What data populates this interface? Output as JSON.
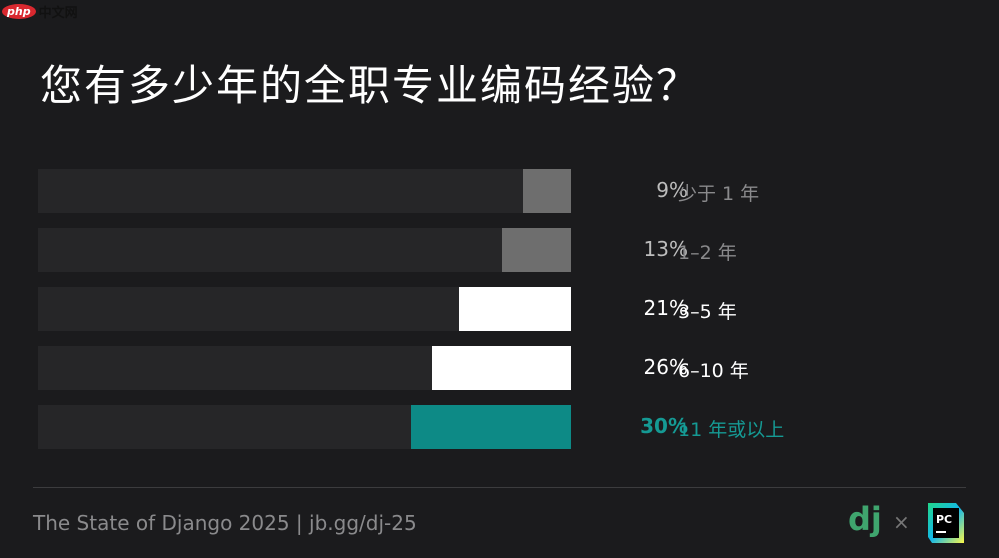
{
  "watermark": {
    "logo": "php",
    "text": "中文网"
  },
  "title": "您有多少年的全职专业编码经验？",
  "chart_data": {
    "type": "bar",
    "orientation": "horizontal",
    "categories": [
      "少于 1 年",
      "1–2 年",
      "3–5 年",
      "6–10 年",
      "11 年或以上"
    ],
    "values": [
      9,
      13,
      21,
      26,
      30
    ],
    "value_labels": [
      "9%",
      "13%",
      "21%",
      "26%",
      "30%"
    ],
    "xlim": [
      0,
      100
    ],
    "grid": false,
    "colors": [
      "#6e6e6e",
      "#6e6e6e",
      "#ffffff",
      "#ffffff",
      "#0d8a86"
    ],
    "label_colors": [
      "#8a8a8c",
      "#8a8a8c",
      "#ffffff",
      "#ffffff",
      "#159a94"
    ],
    "pct_colors": [
      "#bdbdbd",
      "#bdbdbd",
      "#ffffff",
      "#ffffff",
      "#159a94"
    ]
  },
  "footer": {
    "text": "The State of Django 2025 | jb.gg/dj-25",
    "times": "×",
    "dj_logo": "dj",
    "pc_logo": "PC"
  }
}
